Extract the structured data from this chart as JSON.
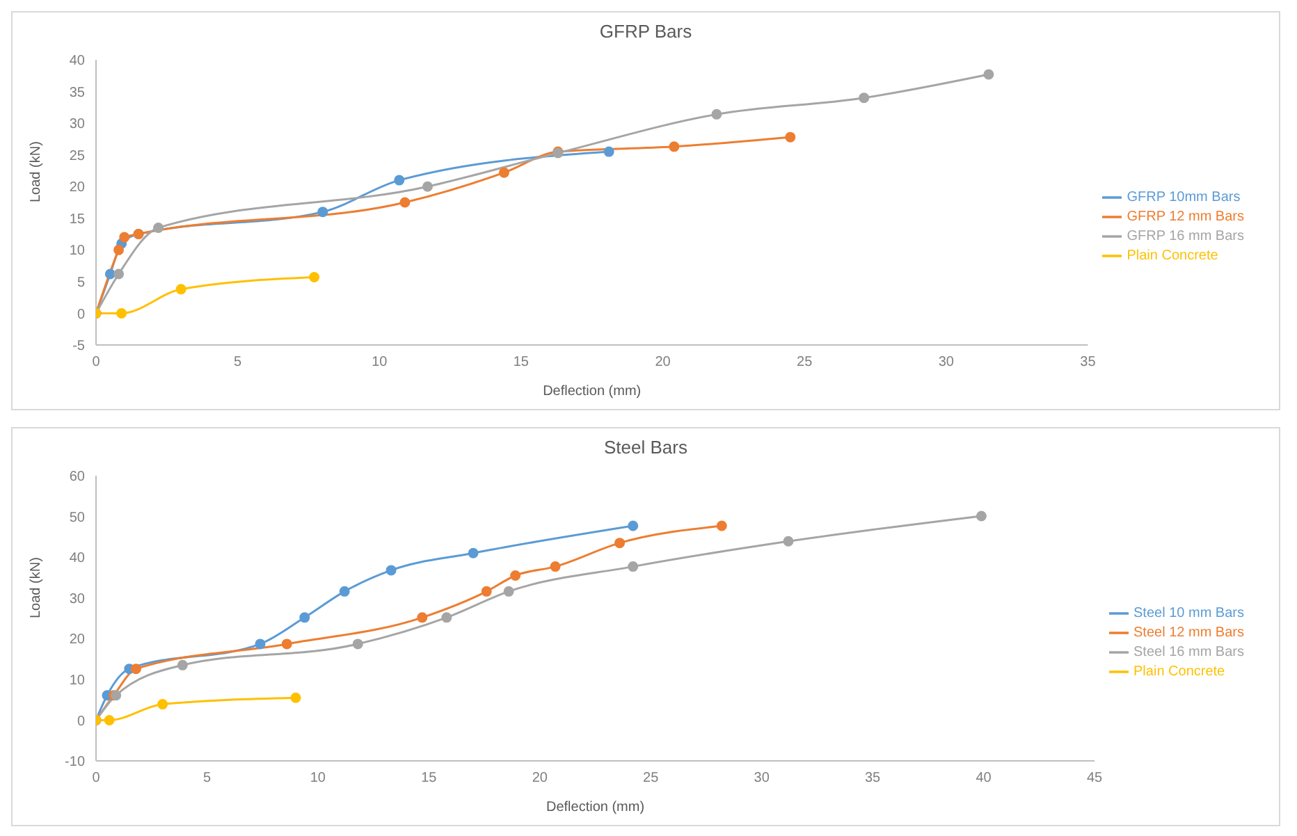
{
  "chart_data": [
    {
      "type": "line",
      "title": "GFRP Bars",
      "xlabel": "Deflection (mm)",
      "ylabel": "Load (kN)",
      "xlim": [
        0,
        35
      ],
      "xticks": [
        0,
        5,
        10,
        15,
        20,
        25,
        30,
        35
      ],
      "ylim": [
        -5,
        40
      ],
      "yticks": [
        -5,
        0,
        5,
        10,
        15,
        20,
        25,
        30,
        35,
        40
      ],
      "grid": false,
      "legend": "right",
      "marker": "circle",
      "series": [
        {
          "name": "GFRP 10mm Bars",
          "color": "#5b9bd5",
          "x": [
            0,
            0.5,
            0.9,
            1.5,
            8,
            10.7,
            18.1
          ],
          "values": [
            0,
            6.2,
            11,
            12.5,
            16,
            21,
            25.5
          ]
        },
        {
          "name": "GFRP 12 mm Bars",
          "color": "#ed7d31",
          "x": [
            0,
            0.8,
            1.0,
            1.5,
            10.9,
            14.4,
            16.3,
            20.4,
            24.5
          ],
          "values": [
            0,
            10,
            12,
            12.5,
            17.5,
            22.2,
            25.5,
            26.3,
            27.8
          ]
        },
        {
          "name": "GFRP 16 mm Bars",
          "color": "#a5a5a5",
          "x": [
            0,
            0.8,
            2.2,
            11.7,
            16.3,
            21.9,
            27.1,
            31.5
          ],
          "values": [
            0,
            6.2,
            13.5,
            20,
            25.3,
            31.4,
            34,
            37.7
          ]
        },
        {
          "name": "Plain Concrete",
          "color": "#ffc000",
          "x": [
            0,
            0.9,
            3,
            7.7
          ],
          "values": [
            0,
            0,
            3.8,
            5.7
          ]
        }
      ]
    },
    {
      "type": "line",
      "title": "Steel Bars",
      "xlabel": "Deflection (mm)",
      "ylabel": "Load (kN)",
      "xlim": [
        0,
        45
      ],
      "xticks": [
        0,
        5,
        10,
        15,
        20,
        25,
        30,
        35,
        40,
        45
      ],
      "ylim": [
        -10,
        60
      ],
      "yticks": [
        -10,
        0,
        10,
        20,
        30,
        40,
        50,
        60
      ],
      "grid": false,
      "legend": "right",
      "marker": "circle",
      "series": [
        {
          "name": "Steel 10 mm Bars",
          "color": "#5b9bd5",
          "x": [
            0,
            0.5,
            1.5,
            7.4,
            9.4,
            11.2,
            13.3,
            17,
            24.2
          ],
          "values": [
            0,
            6.1,
            12.6,
            18.7,
            25.2,
            31.6,
            36.8,
            41,
            47.7
          ]
        },
        {
          "name": "Steel 12 mm Bars",
          "color": "#ed7d31",
          "x": [
            0,
            0.8,
            1.8,
            8.6,
            14.7,
            17.6,
            18.9,
            20.7,
            23.6,
            28.2
          ],
          "values": [
            0,
            6.1,
            12.6,
            18.7,
            25.2,
            31.6,
            35.5,
            37.7,
            43.5,
            47.7
          ]
        },
        {
          "name": "Steel 16 mm Bars",
          "color": "#a5a5a5",
          "x": [
            0,
            0.9,
            3.9,
            11.8,
            15.8,
            18.6,
            24.2,
            31.2,
            39.9
          ],
          "values": [
            0,
            6.1,
            13.5,
            18.7,
            25.2,
            31.6,
            37.7,
            43.9,
            50.1
          ]
        },
        {
          "name": "Plain Concrete",
          "color": "#ffc000",
          "x": [
            0,
            0.6,
            3.0,
            9.0
          ],
          "values": [
            0,
            0,
            3.9,
            5.5
          ]
        }
      ]
    }
  ]
}
